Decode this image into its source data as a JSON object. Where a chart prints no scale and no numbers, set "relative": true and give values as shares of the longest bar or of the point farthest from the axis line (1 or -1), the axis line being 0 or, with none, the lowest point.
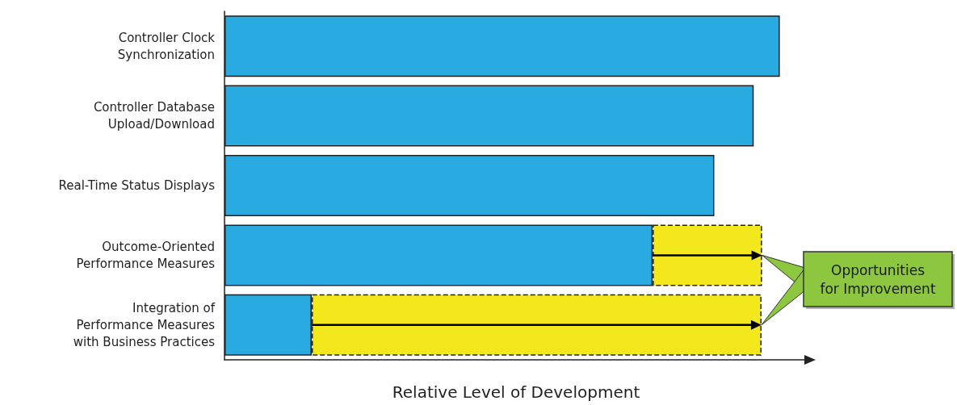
{
  "chart_data": {
    "type": "bar",
    "orientation": "horizontal",
    "stacked": true,
    "relative": true,
    "grid": false,
    "xlabel": "Relative Level of Development",
    "categories": [
      "Controller Clock\nSynchronization",
      "Controller Database\nUpload/Download",
      "Real-Time Status Displays",
      "Outcome-Oriented\nPerformance Measures",
      "Integration of\nPerformance Measures\nwith Business Practices"
    ],
    "series": [
      {
        "color": "#29abe2",
        "line_style": "solid",
        "values": [
          1,
          0.953,
          0.882,
          0.771,
          0.157
        ]
      },
      {
        "color": "#f2e81c",
        "line_style": "dashed",
        "values": [
          null,
          null,
          null,
          0.197,
          0.81
        ]
      }
    ],
    "annotations": [
      "Opportunities\nfor Improvement"
    ]
  }
}
